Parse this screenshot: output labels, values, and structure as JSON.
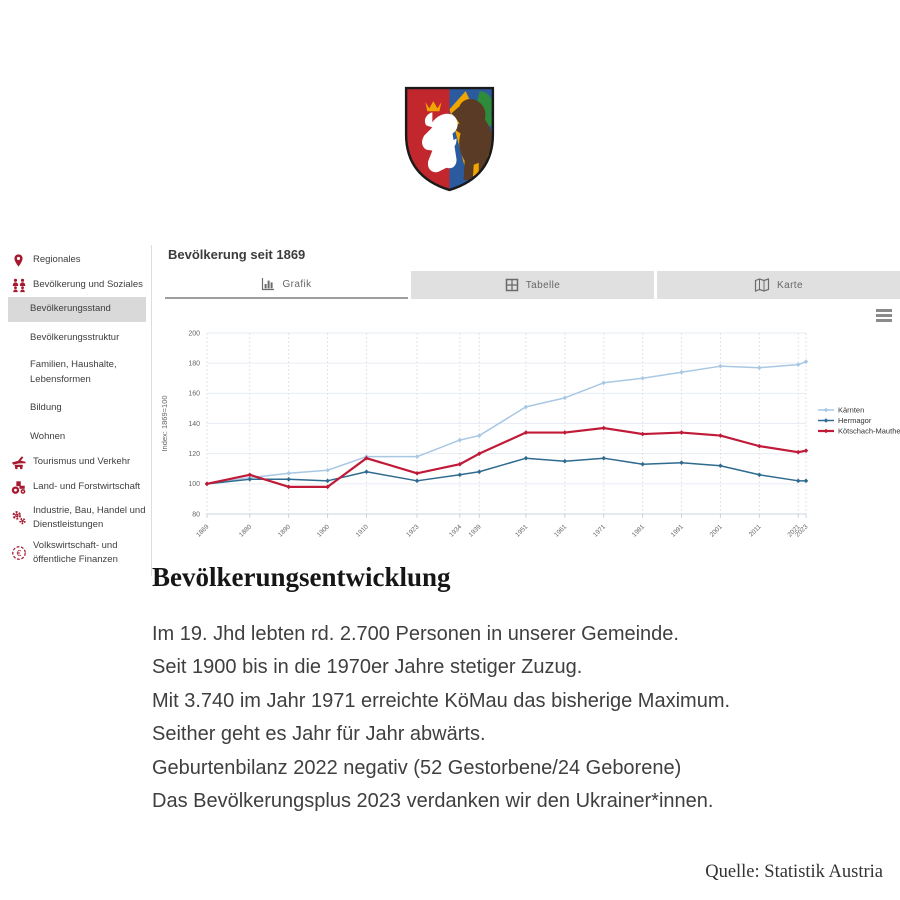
{
  "panel": {
    "title": "Bevölkerung seit 1869",
    "tabs": [
      {
        "label": "Grafik",
        "active": true
      },
      {
        "label": "Tabelle",
        "active": false
      },
      {
        "label": "Karte",
        "active": false
      }
    ]
  },
  "sidebar": {
    "items": [
      {
        "label": "Regionales",
        "icon": "map-pin",
        "active": false
      },
      {
        "label": "Bevölkerung und Soziales",
        "icon": "people",
        "active": false
      },
      {
        "label": "Bevölkerungsstand",
        "icon": null,
        "active": true
      },
      {
        "label": "Bevölkerungsstruktur",
        "icon": null,
        "active": false
      },
      {
        "label": "Familien, Haushalte, Lebensformen",
        "icon": null,
        "active": false
      },
      {
        "label": "Bildung",
        "icon": null,
        "active": false
      },
      {
        "label": "Wohnen",
        "icon": null,
        "active": false
      },
      {
        "label": "Tourismus und Verkehr",
        "icon": "plane-car",
        "active": false
      },
      {
        "label": "Land- und Forstwirtschaft",
        "icon": "tractor",
        "active": false
      },
      {
        "label": "Industrie, Bau, Handel und Dienstleistungen",
        "icon": "gears",
        "active": false
      },
      {
        "label": "Volkswirtschaft- und öffentliche Finanzen",
        "icon": "euro-coin",
        "active": false
      }
    ]
  },
  "chart_data": {
    "type": "line",
    "title": "Bevölkerung seit 1869",
    "xlabel": "",
    "ylabel": "Index: 1869=100",
    "x": [
      1869,
      1880,
      1890,
      1900,
      1910,
      1923,
      1934,
      1939,
      1951,
      1961,
      1971,
      1981,
      1991,
      2001,
      2011,
      2021,
      2023
    ],
    "xlim": [
      1869,
      2023
    ],
    "ylim": [
      80,
      200
    ],
    "yticks": [
      80,
      100,
      120,
      140,
      160,
      180,
      200
    ],
    "grid": true,
    "legend_position": "right",
    "series": [
      {
        "name": "Kärnten",
        "color": "#a9c8e4",
        "values": [
          100,
          104,
          107,
          109,
          118,
          118,
          129,
          132,
          151,
          157,
          167,
          170,
          174,
          178,
          177,
          179,
          181
        ]
      },
      {
        "name": "Hermagor",
        "color": "#2f6a8f",
        "values": [
          100,
          103,
          103,
          102,
          108,
          102,
          106,
          108,
          117,
          115,
          117,
          113,
          114,
          112,
          106,
          102,
          102
        ]
      },
      {
        "name": "Kötschach-Mauthen",
        "color": "#c01a38",
        "values": [
          100,
          106,
          98,
          98,
          117,
          107,
          113,
          120,
          134,
          134,
          137,
          133,
          134,
          132,
          125,
          121,
          122
        ]
      }
    ]
  },
  "article": {
    "heading": "Bevölkerungsentwicklung",
    "lines": [
      "Im 19. Jhd lebten rd. 2.700 Personen in unserer Gemeinde.",
      "Seit 1900 bis in die 1970er Jahre stetiger Zuzug.",
      "Mit 3.740 im Jahr 1971 erreichte KöMau das bisherige Maximum.",
      "Seither geht es Jahr für Jahr abwärts.",
      "Geburtenbilanz 2022 negativ (52 Gestorbene/24 Geborene)",
      "Das Bevölkerungsplus 2023 verdanken wir den Ukrainer*innen."
    ]
  },
  "source": {
    "label": "Quelle: Statistik Austria"
  },
  "colors": {
    "brand_red": "#a6192e",
    "crest_red": "#c1272d",
    "crest_blue": "#2b5b9e",
    "crest_gold": "#f0a500",
    "crest_green": "#2e8b3c",
    "crest_brown": "#5a3b25",
    "selected_bg": "#d9d9d9"
  }
}
